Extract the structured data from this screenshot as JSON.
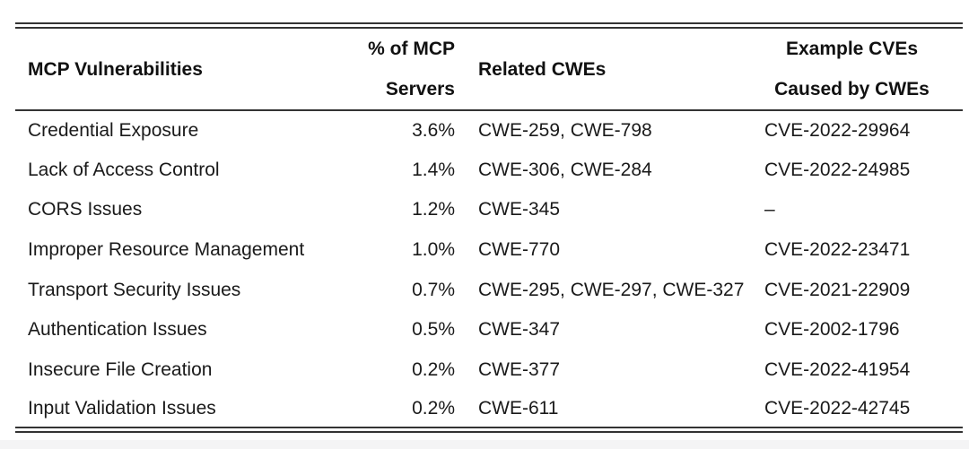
{
  "colors": {
    "rule": "#333333",
    "header_text": "#111111",
    "body_text": "#1a1a1a",
    "bottom_strip": "#f4f4f5",
    "background": "#ffffff"
  },
  "table": {
    "headers": {
      "vulnerabilities": "MCP Vulnerabilities",
      "percent_line1": "% of MCP",
      "percent_line2": "Servers",
      "related_cwes": "Related CWEs",
      "example_cves_line1": "Example CVEs",
      "example_cves_line2": "Caused by CWEs"
    },
    "rows": [
      {
        "vulnerability": "Credential Exposure",
        "percent": "3.6%",
        "cwes": "CWE-259, CWE-798",
        "cve": "CVE-2022-29964"
      },
      {
        "vulnerability": "Lack of Access Control",
        "percent": "1.4%",
        "cwes": "CWE-306, CWE-284",
        "cve": "CVE-2022-24985"
      },
      {
        "vulnerability": "CORS Issues",
        "percent": "1.2%",
        "cwes": "CWE-345",
        "cve": "–"
      },
      {
        "vulnerability": "Improper Resource Management",
        "percent": "1.0%",
        "cwes": "CWE-770",
        "cve": "CVE-2022-23471"
      },
      {
        "vulnerability": "Transport Security Issues",
        "percent": "0.7%",
        "cwes": "CWE-295, CWE-297, CWE-327",
        "cve": "CVE-2021-22909"
      },
      {
        "vulnerability": "Authentication Issues",
        "percent": "0.5%",
        "cwes": "CWE-347",
        "cve": "CVE-2002-1796"
      },
      {
        "vulnerability": "Insecure File Creation",
        "percent": "0.2%",
        "cwes": "CWE-377",
        "cve": "CVE-2022-41954"
      },
      {
        "vulnerability": "Input Validation Issues",
        "percent": "0.2%",
        "cwes": "CWE-611",
        "cve": "CVE-2022-42745"
      }
    ]
  },
  "chart_data": {
    "type": "table",
    "columns": [
      "MCP Vulnerabilities",
      "% of MCP Servers",
      "Related CWEs",
      "Example CVEs Caused by CWEs"
    ],
    "rows": [
      [
        "Credential Exposure",
        "3.6%",
        "CWE-259, CWE-798",
        "CVE-2022-29964"
      ],
      [
        "Lack of Access Control",
        "1.4%",
        "CWE-306, CWE-284",
        "CVE-2022-24985"
      ],
      [
        "CORS Issues",
        "1.2%",
        "CWE-345",
        "–"
      ],
      [
        "Improper Resource Management",
        "1.0%",
        "CWE-770",
        "CVE-2022-23471"
      ],
      [
        "Transport Security Issues",
        "0.7%",
        "CWE-295, CWE-297, CWE-327",
        "CVE-2021-22909"
      ],
      [
        "Authentication Issues",
        "0.5%",
        "CWE-347",
        "CVE-2002-1796"
      ],
      [
        "Insecure File Creation",
        "0.2%",
        "CWE-377",
        "CVE-2022-41954"
      ],
      [
        "Input Validation Issues",
        "0.2%",
        "CWE-611",
        "CVE-2022-42745"
      ]
    ]
  }
}
